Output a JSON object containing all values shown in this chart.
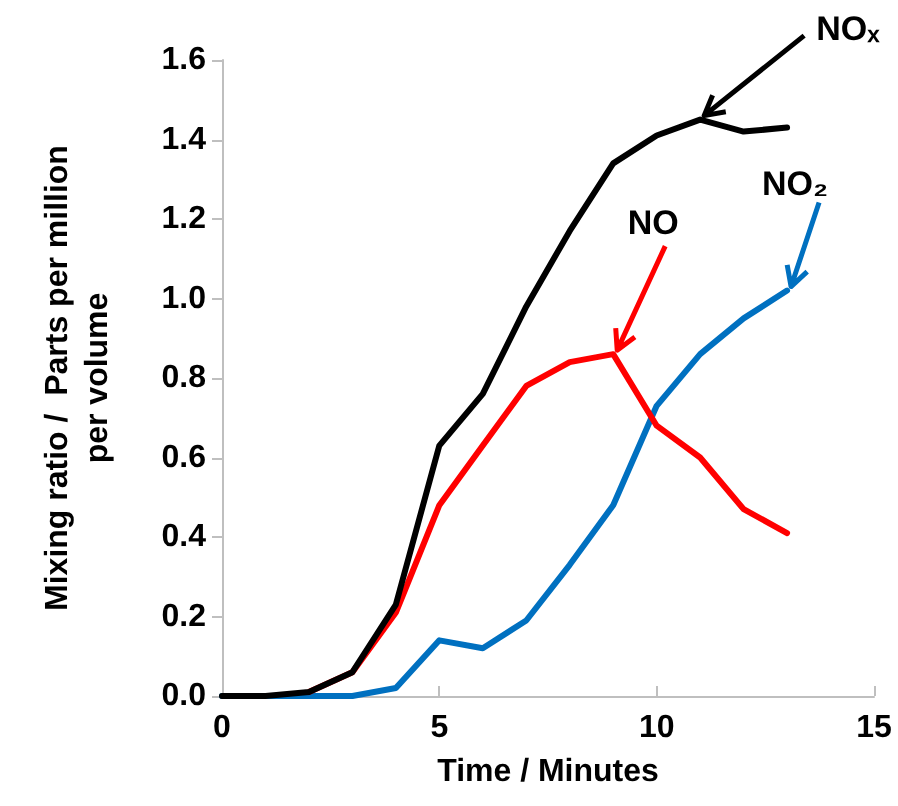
{
  "chart_data": {
    "type": "line",
    "xlabel": "Time / Minutes",
    "ylabel": "Mixing ratio /  Parts per million\nper volume",
    "x": [
      0,
      1,
      2,
      3,
      4,
      5,
      6,
      7,
      8,
      9,
      10,
      11,
      12,
      13
    ],
    "series": [
      {
        "name": "NOₓ",
        "color": "#000000",
        "values": [
          0,
          0,
          0.01,
          0.06,
          0.23,
          0.63,
          0.76,
          0.98,
          1.17,
          1.34,
          1.41,
          1.45,
          1.42,
          1.43
        ]
      },
      {
        "name": "NO",
        "color": "#ff0000",
        "values": [
          null,
          null,
          0.01,
          0.06,
          0.21,
          0.48,
          0.63,
          0.78,
          0.84,
          0.86,
          0.68,
          0.6,
          0.47,
          0.41
        ]
      },
      {
        "name": "NO₂",
        "color": "#0070c0",
        "values": [
          0,
          0,
          0,
          0,
          0.02,
          0.14,
          0.12,
          0.19,
          0.33,
          0.48,
          0.73,
          0.86,
          0.95,
          1.02
        ]
      }
    ],
    "xlim": [
      0,
      15
    ],
    "xticks": [
      0,
      5,
      10,
      15
    ],
    "ylim": [
      0,
      1.6
    ],
    "yticks": [
      {
        "value": 0,
        "label": "0.0"
      },
      {
        "value": 0.2,
        "label": "0.2"
      },
      {
        "value": 0.4,
        "label": "0.4"
      },
      {
        "value": 0.6,
        "label": "0.6"
      },
      {
        "value": 0.8,
        "label": "0.8"
      },
      {
        "value": 1,
        "label": "1.0"
      },
      {
        "value": 1.2,
        "label": "1.2"
      },
      {
        "value": 1.4,
        "label": "1.4"
      },
      {
        "value": 1.6,
        "label": "1.6"
      }
    ],
    "grid": false,
    "legend": false,
    "marker": "none",
    "line_style": "solid"
  }
}
